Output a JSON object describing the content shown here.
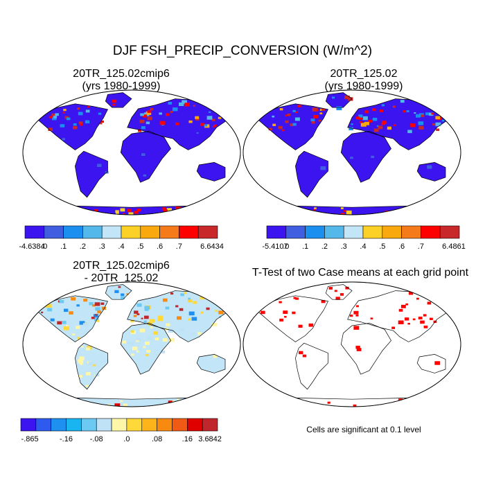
{
  "main_title": "DJF FSH_PRECIP_CONVERSION (W/m^2)",
  "chart_data": [
    {
      "type": "heatmap",
      "title": "20TR_125.02cmip6",
      "subtitle": "(yrs 1980-1999)",
      "colorbar": {
        "labels": [
          "-4.6384",
          ".0",
          ".1",
          ".2",
          ".3",
          ".4",
          ".5",
          ".6",
          ".7",
          "6.6434"
        ],
        "colors": [
          "#3b14f0",
          "#3f5fe0",
          "#1a8ff0",
          "#55b8ea",
          "#c2e6f7",
          "#fcd127",
          "#f9a90e",
          "#f47a1a",
          "#ff0000",
          "#c9282a"
        ]
      }
    },
    {
      "type": "heatmap",
      "title": "20TR_125.02",
      "subtitle": "(yrs 1980-1999)",
      "colorbar": {
        "labels": [
          "-5.4107",
          ".0",
          ".1",
          ".2",
          ".3",
          ".4",
          ".5",
          ".6",
          ".7",
          "6.4861"
        ],
        "colors": [
          "#3b14f0",
          "#3f5fe0",
          "#1a8ff0",
          "#55b8ea",
          "#c2e6f7",
          "#fcd127",
          "#f9a90e",
          "#f47a1a",
          "#ff0000",
          "#c9282a"
        ]
      }
    },
    {
      "type": "heatmap",
      "title": "20TR_125.02cmip6",
      "subtitle": "- 20TR_125.02",
      "colorbar": {
        "labels": [
          "-.865",
          "-.16",
          "-.08",
          ".0",
          ".08",
          ".16",
          "3.6842"
        ],
        "colors": [
          "#3b14f0",
          "#2f5af0",
          "#1e90f0",
          "#18b5f0",
          "#6cc9f2",
          "#bfe2f7",
          "#fff6a8",
          "#ffd83a",
          "#fcb41a",
          "#f98a10",
          "#f05a14",
          "#e00000",
          "#c0272d"
        ]
      }
    },
    {
      "type": "heatmap",
      "title": "T-Test of two Case means at each grid point",
      "note": "Cells are significant at 0.1 level",
      "colors": {
        "significant": "#ff0000"
      }
    }
  ]
}
